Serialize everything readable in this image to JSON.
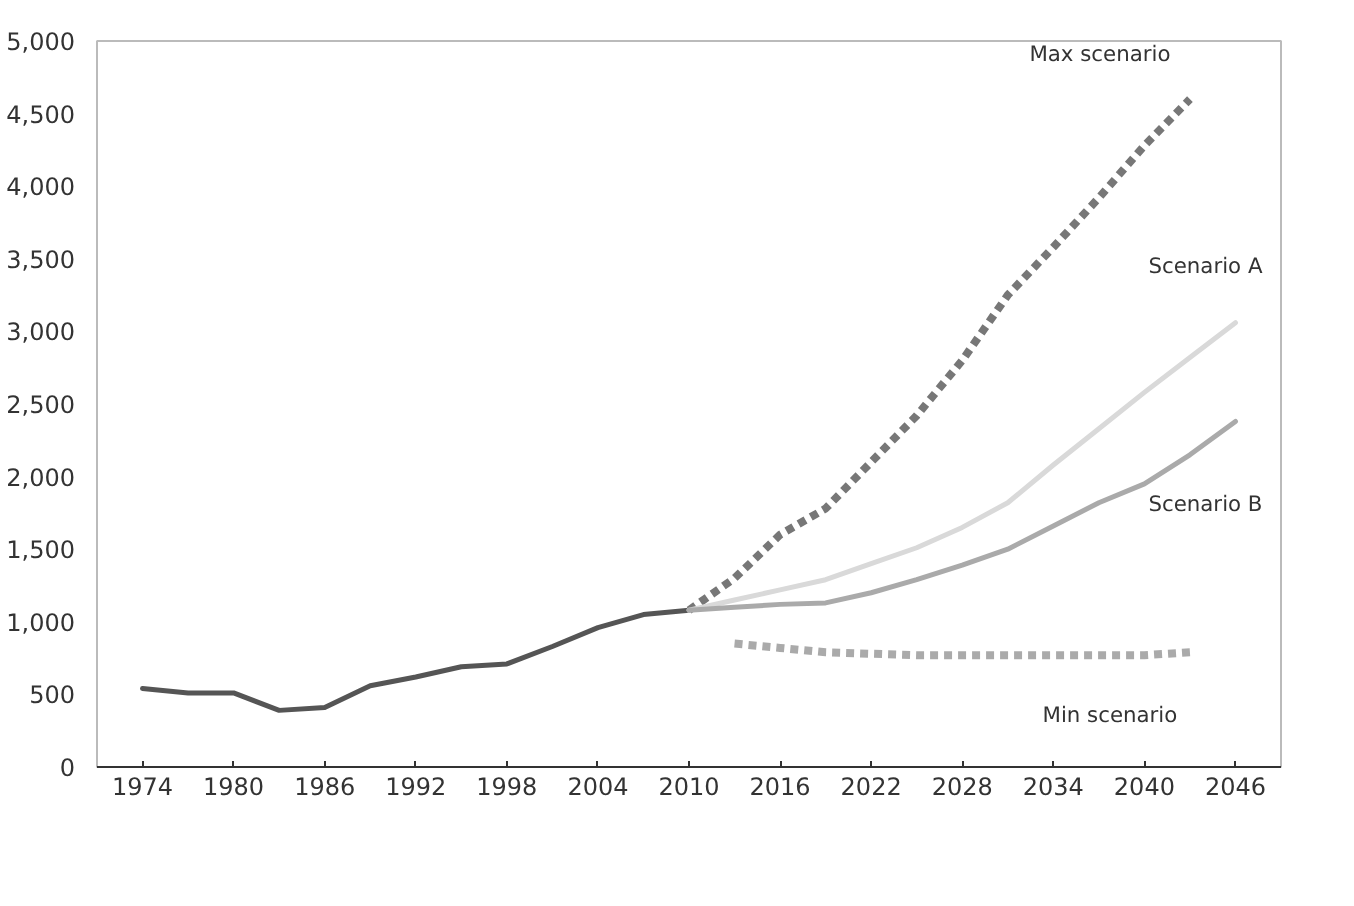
{
  "chart_data": {
    "type": "line",
    "xlim": [
      1971,
      2049
    ],
    "ylim": [
      0,
      5000
    ],
    "xticks": [
      1974,
      1980,
      1986,
      1992,
      1998,
      2004,
      2010,
      2016,
      2022,
      2028,
      2034,
      2040,
      2046
    ],
    "yticks": [
      0,
      {
        "value": 500,
        "label": "500"
      },
      {
        "value": 1000,
        "label": "1,000"
      },
      {
        "value": 1500,
        "label": "1,500"
      },
      {
        "value": 2000,
        "label": "2,000"
      },
      {
        "value": 2500,
        "label": "2,500"
      },
      {
        "value": 3000,
        "label": "3,000"
      },
      {
        "value": 3500,
        "label": "3,500"
      },
      {
        "value": 4000,
        "label": "4,000"
      },
      {
        "value": 4500,
        "label": "4,500"
      },
      {
        "value": 5000,
        "label": "5,000"
      }
    ],
    "grid": false,
    "marker": "none",
    "series": [
      {
        "color": "#555555",
        "line_style": "solid",
        "x": [
          1974,
          1977,
          1980,
          1983,
          1986,
          1989,
          1992,
          1995,
          1998,
          2001,
          2004,
          2007,
          2010
        ],
        "values": [
          540,
          510,
          510,
          390,
          410,
          560,
          620,
          690,
          710,
          830,
          960,
          1050,
          1080
        ]
      },
      {
        "name": "Max scenario",
        "color": "#777777",
        "line_style": "dashed",
        "x": [
          2010,
          2013,
          2016,
          2019,
          2022,
          2025,
          2028,
          2031,
          2034,
          2037,
          2040,
          2043
        ],
        "values": [
          1080,
          1300,
          1600,
          1780,
          2100,
          2420,
          2800,
          3250,
          3580,
          3920,
          4280,
          4600
        ]
      },
      {
        "name": "Scenario A",
        "color": "#d9d9d9",
        "line_style": "solid",
        "x": [
          2010,
          2013,
          2016,
          2019,
          2022,
          2025,
          2028,
          2031,
          2034,
          2037,
          2040,
          2043,
          2046
        ],
        "values": [
          1080,
          1150,
          1220,
          1290,
          1400,
          1510,
          1650,
          1820,
          2080,
          2330,
          2580,
          2820,
          3060
        ]
      },
      {
        "name": "Scenario B",
        "color": "#aaaaaa",
        "line_style": "solid",
        "x": [
          2010,
          2013,
          2016,
          2019,
          2022,
          2025,
          2028,
          2031,
          2034,
          2037,
          2040,
          2043,
          2046
        ],
        "values": [
          1080,
          1100,
          1120,
          1130,
          1200,
          1290,
          1390,
          1500,
          1660,
          1820,
          1950,
          2150,
          2380
        ]
      },
      {
        "name": "Min scenario",
        "color": "#aaaaaa",
        "line_style": "dashed",
        "x": [
          2013,
          2016,
          2019,
          2022,
          2025,
          2028,
          2031,
          2034,
          2037,
          2040,
          2043
        ],
        "values": [
          850,
          820,
          790,
          780,
          770,
          770,
          770,
          770,
          770,
          770,
          790
        ]
      }
    ]
  }
}
